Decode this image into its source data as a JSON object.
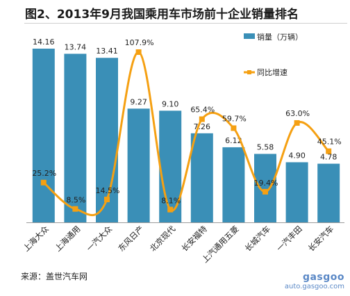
{
  "title": "图2、2013年9月我国乘用车市场前十企业销量排名",
  "source": "来源：盖世汽车网",
  "watermark": {
    "logo": "gasgoo",
    "url": "auto.gasgoo.com"
  },
  "colors": {
    "bar": "#3a8fb7",
    "line": "#f5a012"
  },
  "chart_data": {
    "type": "bar",
    "title": "图2、2013年9月我国乘用车市场前十企业销量排名",
    "categories": [
      "上海大众",
      "上海通用",
      "一汽大众",
      "东风日产",
      "北京现代",
      "长安福特",
      "上汽通用五菱",
      "长城汽车",
      "一汽丰田",
      "长安汽车"
    ],
    "series": [
      {
        "name": "销量（万辆）",
        "type": "bar",
        "axis": "left",
        "values": [
          14.16,
          13.74,
          13.41,
          9.27,
          9.1,
          7.26,
          6.12,
          5.58,
          4.9,
          4.78
        ],
        "labels": [
          "14.16",
          "13.74",
          "13.41",
          "9.27",
          "9.10",
          "7.26",
          "6.12",
          "5.58",
          "4.90",
          "4.78"
        ]
      },
      {
        "name": "同比增速",
        "type": "line",
        "smooth": true,
        "axis": "right",
        "values": [
          25.2,
          8.5,
          14.5,
          107.9,
          8.1,
          65.4,
          59.7,
          19.4,
          63.0,
          45.1
        ],
        "labels": [
          "25.2%",
          "8.5%",
          "14.5%",
          "107.9%",
          "8.1%",
          "65.4%",
          "59.7%",
          "19.4%",
          "63.0%",
          "45.1%"
        ]
      }
    ],
    "legend_position": "top-right",
    "grid": false
  }
}
